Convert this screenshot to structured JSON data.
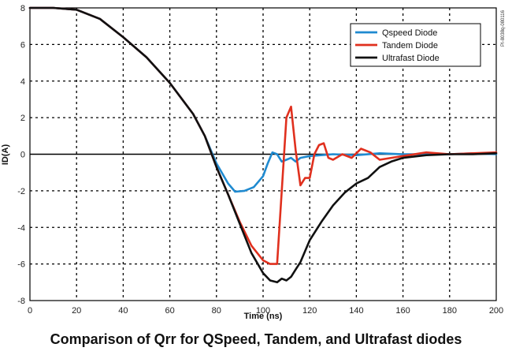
{
  "caption": "Comparison of Qrr for QSpeed, Tandem, and Ultrafast diodes",
  "side_code": "PI-8038q-080116",
  "chart_data": {
    "type": "line",
    "title": "",
    "xlabel": "Time (ns)",
    "ylabel": "ID(A)",
    "xlim": [
      0,
      200
    ],
    "ylim": [
      -8,
      8
    ],
    "x_ticks": [
      0,
      20,
      40,
      60,
      80,
      100,
      120,
      140,
      160,
      180,
      200
    ],
    "y_ticks": [
      -8,
      -6,
      -4,
      -2,
      0,
      2,
      4,
      6,
      8
    ],
    "grid": true,
    "legend_position": "top-right",
    "series": [
      {
        "name": "Qspeed Diode",
        "color": "#1f8ad0",
        "x": [
          0,
          10,
          20,
          30,
          40,
          50,
          60,
          70,
          75,
          80,
          85,
          88,
          92,
          96,
          100,
          102,
          104,
          106,
          108,
          110,
          112,
          114,
          116,
          120,
          130,
          140,
          150,
          160,
          170,
          180,
          190,
          200
        ],
        "y": [
          8,
          8,
          7.9,
          7.4,
          6.4,
          5.3,
          3.9,
          2.2,
          1.0,
          -0.5,
          -1.6,
          -2.05,
          -2.0,
          -1.8,
          -1.2,
          -0.5,
          0.1,
          0.0,
          -0.4,
          -0.3,
          -0.2,
          -0.4,
          -0.2,
          -0.1,
          0.0,
          -0.05,
          0.05,
          0.0,
          0.0,
          0.0,
          0.05,
          0.0
        ]
      },
      {
        "name": "Tandem Diode",
        "color": "#e0301e",
        "x": [
          0,
          10,
          20,
          30,
          40,
          50,
          60,
          70,
          75,
          80,
          85,
          90,
          95,
          100,
          103,
          106,
          108,
          110,
          112,
          114,
          116,
          118,
          120,
          122,
          124,
          126,
          128,
          130,
          134,
          138,
          142,
          146,
          150,
          160,
          170,
          180,
          190,
          200
        ],
        "y": [
          8,
          8,
          7.9,
          7.4,
          6.4,
          5.3,
          3.9,
          2.2,
          1.0,
          -0.7,
          -2.2,
          -3.7,
          -5.0,
          -5.8,
          -6.0,
          -6.0,
          -2.0,
          2.0,
          2.6,
          0.2,
          -1.7,
          -1.3,
          -1.3,
          0.0,
          0.5,
          0.6,
          -0.2,
          -0.3,
          0.0,
          -0.2,
          0.3,
          0.1,
          -0.3,
          -0.1,
          0.1,
          0.0,
          0.05,
          0.1
        ]
      },
      {
        "name": "Ultrafast Diode",
        "color": "#111111",
        "x": [
          0,
          10,
          20,
          30,
          40,
          50,
          60,
          70,
          75,
          80,
          85,
          90,
          95,
          100,
          103,
          106,
          108,
          110,
          112,
          114,
          116,
          118,
          120,
          125,
          130,
          135,
          140,
          145,
          150,
          155,
          160,
          170,
          180,
          190,
          200
        ],
        "y": [
          8,
          8,
          7.9,
          7.4,
          6.4,
          5.3,
          3.9,
          2.2,
          1.0,
          -0.7,
          -2.2,
          -3.8,
          -5.4,
          -6.5,
          -6.9,
          -7.0,
          -6.8,
          -6.9,
          -6.7,
          -6.3,
          -5.9,
          -5.3,
          -4.7,
          -3.7,
          -2.8,
          -2.1,
          -1.6,
          -1.3,
          -0.7,
          -0.4,
          -0.2,
          -0.05,
          0.0,
          0.0,
          0.05
        ]
      }
    ]
  }
}
